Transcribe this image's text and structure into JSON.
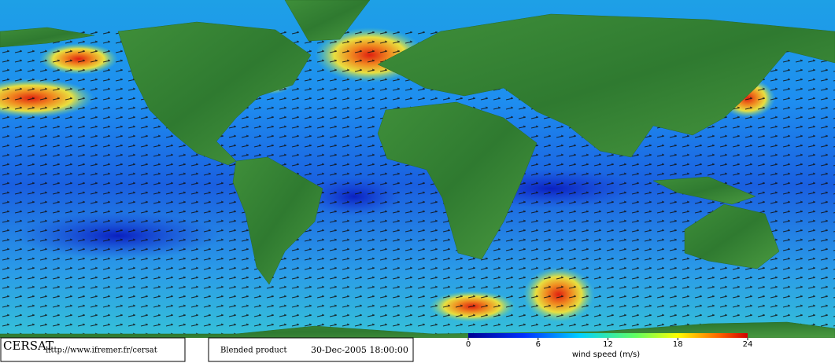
{
  "footer": {
    "logo": "CERSAT",
    "url": "http://www.ifremer.fr/cersat",
    "product": "Blended product",
    "date": "30-Dec-2005 18:00:00"
  },
  "colorbar": {
    "label": "wind speed (m/s)",
    "lim": [
      0,
      24
    ],
    "ticks": [
      0,
      6,
      12,
      18,
      24
    ]
  }
}
